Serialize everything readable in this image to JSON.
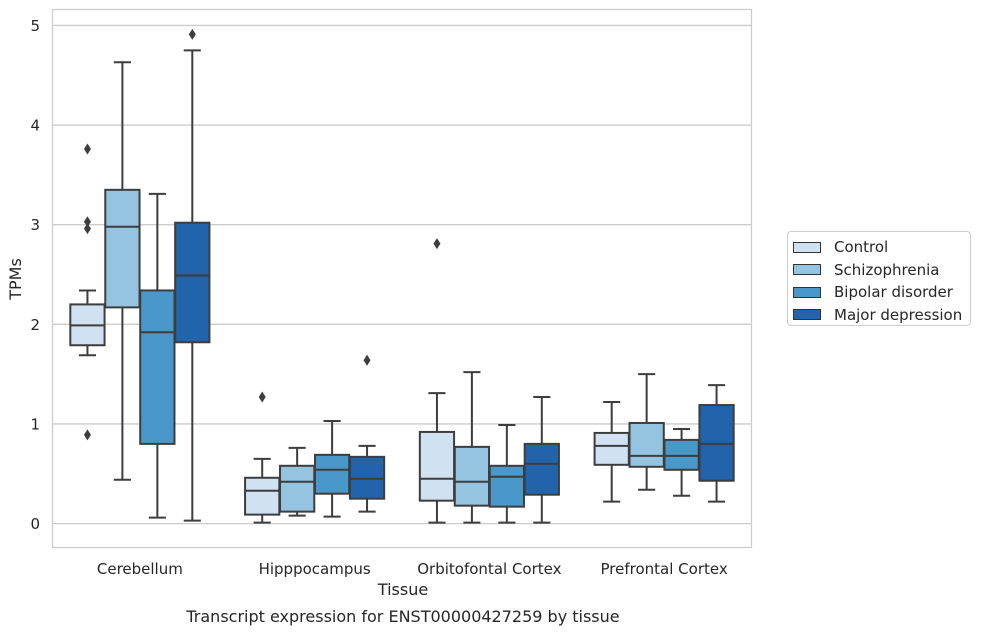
{
  "chart_data": {
    "type": "boxplot",
    "title": "Transcript expression for ENST00000427259 by tissue",
    "xlabel": "Tissue",
    "ylabel": "TPMs",
    "ylim": [
      -0.24,
      5.16
    ],
    "yticks": [
      0,
      1,
      2,
      3,
      4,
      5
    ],
    "grid": true,
    "legend_position": "right",
    "categories": [
      "Cerebellum",
      "Hipppocampus",
      "Orbitofontal Cortex",
      "Prefrontal Cortex"
    ],
    "series": [
      {
        "name": "Control",
        "color": "#d0e1f2",
        "boxes": [
          {
            "whislo": 1.69,
            "q1": 1.79,
            "med": 1.99,
            "q3": 2.2,
            "whishi": 2.34,
            "fliers": [
              3.76,
              3.03,
              2.96,
              0.89
            ]
          },
          {
            "whislo": 0.01,
            "q1": 0.09,
            "med": 0.33,
            "q3": 0.46,
            "whishi": 0.65,
            "fliers": [
              1.27
            ]
          },
          {
            "whislo": 0.01,
            "q1": 0.23,
            "med": 0.45,
            "q3": 0.92,
            "whishi": 1.31,
            "fliers": [
              2.81
            ]
          },
          {
            "whislo": 0.22,
            "q1": 0.59,
            "med": 0.78,
            "q3": 0.91,
            "whishi": 1.22,
            "fliers": []
          }
        ]
      },
      {
        "name": "Schizophrenia",
        "color": "#94c4df",
        "boxes": [
          {
            "whislo": 0.44,
            "q1": 2.17,
            "med": 2.98,
            "q3": 3.35,
            "whishi": 4.63,
            "fliers": []
          },
          {
            "whislo": 0.08,
            "q1": 0.12,
            "med": 0.42,
            "q3": 0.58,
            "whishi": 0.76,
            "fliers": []
          },
          {
            "whislo": 0.01,
            "q1": 0.18,
            "med": 0.42,
            "q3": 0.77,
            "whishi": 1.52,
            "fliers": []
          },
          {
            "whislo": 0.34,
            "q1": 0.57,
            "med": 0.68,
            "q3": 1.01,
            "whishi": 1.5,
            "fliers": []
          }
        ]
      },
      {
        "name": "Bipolar disorder",
        "color": "#4a98c9",
        "boxes": [
          {
            "whislo": 0.06,
            "q1": 0.8,
            "med": 1.92,
            "q3": 2.34,
            "whishi": 3.31,
            "fliers": []
          },
          {
            "whislo": 0.07,
            "q1": 0.3,
            "med": 0.54,
            "q3": 0.69,
            "whishi": 1.03,
            "fliers": []
          },
          {
            "whislo": 0.01,
            "q1": 0.17,
            "med": 0.47,
            "q3": 0.58,
            "whishi": 0.99,
            "fliers": []
          },
          {
            "whislo": 0.28,
            "q1": 0.54,
            "med": 0.68,
            "q3": 0.84,
            "whishi": 0.95,
            "fliers": []
          }
        ]
      },
      {
        "name": "Major depression",
        "color": "#2164ab",
        "boxes": [
          {
            "whislo": 0.03,
            "q1": 1.82,
            "med": 2.49,
            "q3": 3.02,
            "whishi": 4.75,
            "fliers": [
              4.91
            ]
          },
          {
            "whislo": 0.12,
            "q1": 0.25,
            "med": 0.45,
            "q3": 0.67,
            "whishi": 0.78,
            "fliers": [
              1.64
            ]
          },
          {
            "whislo": 0.01,
            "q1": 0.29,
            "med": 0.6,
            "q3": 0.8,
            "whishi": 1.27,
            "fliers": []
          },
          {
            "whislo": 0.22,
            "q1": 0.43,
            "med": 0.8,
            "q3": 1.19,
            "whishi": 1.39,
            "fliers": []
          }
        ]
      }
    ]
  }
}
